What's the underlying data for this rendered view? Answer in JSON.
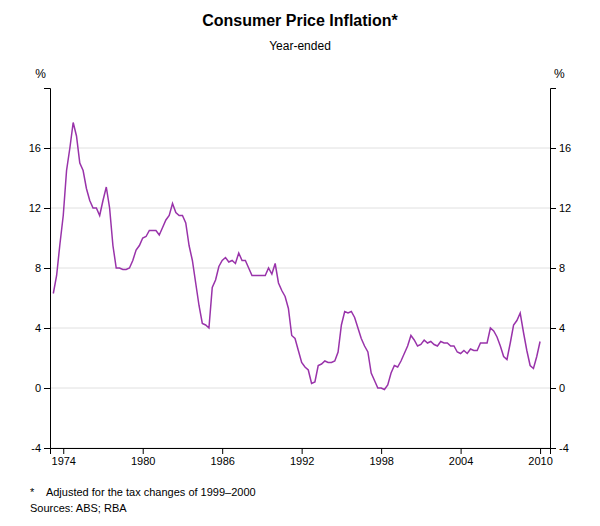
{
  "chart_data": {
    "type": "line",
    "title": "Consumer Price Inflation*",
    "subtitle": "Year-ended",
    "ylabel": "%",
    "y2label": "%",
    "annotations": [
      "*    Adjusted for the tax changes of 1999–2000",
      "Sources: ABS; RBA"
    ],
    "color": "#9933AA",
    "grid": true,
    "xlim": [
      1973.0,
      2010.75
    ],
    "xticks": [
      1974,
      1980,
      1986,
      1992,
      1998,
      2004,
      2010
    ],
    "ylim": [
      -4,
      20
    ],
    "yticks": [
      -4,
      0,
      4,
      8,
      12,
      16
    ],
    "y2lim": [
      -4,
      20
    ],
    "y2ticks": [
      -4,
      0,
      4,
      8,
      12,
      16
    ],
    "x": [
      1973.25,
      1973.5,
      1973.75,
      1974.0,
      1974.25,
      1974.5,
      1974.75,
      1975.0,
      1975.25,
      1975.5,
      1975.75,
      1976.0,
      1976.25,
      1976.5,
      1976.75,
      1977.0,
      1977.25,
      1977.5,
      1977.75,
      1978.0,
      1978.25,
      1978.5,
      1978.75,
      1979.0,
      1979.25,
      1979.5,
      1979.75,
      1980.0,
      1980.25,
      1980.5,
      1980.75,
      1981.0,
      1981.25,
      1981.5,
      1981.75,
      1982.0,
      1982.25,
      1982.5,
      1982.75,
      1983.0,
      1983.25,
      1983.5,
      1983.75,
      1984.0,
      1984.25,
      1984.5,
      1984.75,
      1985.0,
      1985.25,
      1985.5,
      1985.75,
      1986.0,
      1986.25,
      1986.5,
      1986.75,
      1987.0,
      1987.25,
      1987.5,
      1987.75,
      1988.0,
      1988.25,
      1988.5,
      1988.75,
      1989.0,
      1989.25,
      1989.5,
      1989.75,
      1990.0,
      1990.25,
      1990.5,
      1990.75,
      1991.0,
      1991.25,
      1991.5,
      1991.75,
      1992.0,
      1992.25,
      1992.5,
      1992.75,
      1993.0,
      1993.25,
      1993.5,
      1993.75,
      1994.0,
      1994.25,
      1994.5,
      1994.75,
      1995.0,
      1995.25,
      1995.5,
      1995.75,
      1996.0,
      1996.25,
      1996.5,
      1996.75,
      1997.0,
      1997.25,
      1997.5,
      1997.75,
      1998.0,
      1998.25,
      1998.5,
      1998.75,
      1999.0,
      1999.25,
      1999.5,
      1999.75,
      2000.0,
      2000.25,
      2000.5,
      2000.75,
      2001.0,
      2001.25,
      2001.5,
      2001.75,
      2002.0,
      2002.25,
      2002.5,
      2002.75,
      2003.0,
      2003.25,
      2003.5,
      2003.75,
      2004.0,
      2004.25,
      2004.5,
      2004.75,
      2005.0,
      2005.25,
      2005.5,
      2005.75,
      2006.0,
      2006.25,
      2006.5,
      2006.75,
      2007.0,
      2007.25,
      2007.5,
      2007.75,
      2008.0,
      2008.25,
      2008.5,
      2008.75,
      2009.0,
      2009.25,
      2009.5,
      2009.75,
      2010.0
    ],
    "values": [
      6.3,
      7.5,
      9.6,
      11.5,
      14.5,
      16.0,
      17.7,
      16.8,
      15.0,
      14.5,
      13.3,
      12.5,
      12.0,
      12.0,
      11.5,
      12.5,
      13.4,
      12.0,
      9.5,
      8.0,
      8.0,
      7.9,
      7.9,
      8.0,
      8.5,
      9.2,
      9.5,
      10.0,
      10.1,
      10.5,
      10.5,
      10.5,
      10.2,
      10.7,
      11.2,
      11.5,
      12.3,
      11.7,
      11.5,
      11.5,
      11.0,
      9.5,
      8.5,
      7.0,
      5.5,
      4.3,
      4.2,
      4.0,
      6.7,
      7.2,
      8.1,
      8.5,
      8.7,
      8.4,
      8.5,
      8.3,
      9.0,
      8.5,
      8.5,
      8.0,
      7.5,
      7.5,
      7.5,
      7.5,
      7.5,
      8.0,
      7.6,
      8.3,
      7.0,
      6.5,
      6.1,
      5.3,
      3.5,
      3.3,
      2.5,
      1.7,
      1.4,
      1.2,
      0.3,
      0.4,
      1.5,
      1.6,
      1.8,
      1.7,
      1.7,
      1.8,
      2.4,
      4.2,
      5.1,
      5.0,
      5.1,
      4.7,
      4.0,
      3.3,
      2.8,
      2.4,
      1.0,
      0.5,
      0.0,
      0.0,
      -0.1,
      0.2,
      1.0,
      1.5,
      1.4,
      1.8,
      2.3,
      2.8,
      3.5,
      3.2,
      2.8,
      2.9,
      3.2,
      3.0,
      3.1,
      2.9,
      2.8,
      3.1,
      3.0,
      3.0,
      2.8,
      2.8,
      2.4,
      2.3,
      2.5,
      2.3,
      2.6,
      2.5,
      2.5,
      3.0,
      3.0,
      3.0,
      4.0,
      3.8,
      3.4,
      2.8,
      2.1,
      1.9,
      3.0,
      4.2,
      4.5,
      5.0,
      3.7,
      2.5,
      1.5,
      1.3,
      2.1,
      3.1
    ]
  }
}
